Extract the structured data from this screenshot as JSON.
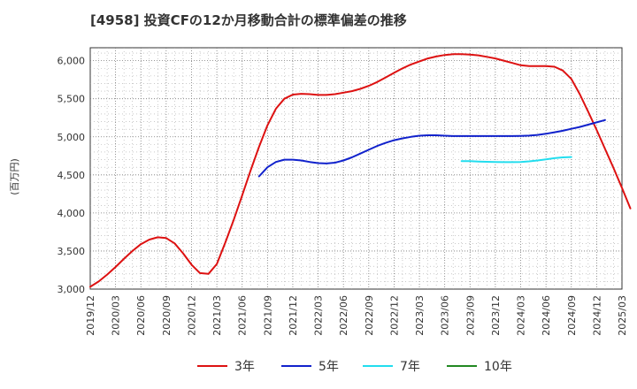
{
  "chart_data": {
    "type": "line",
    "title": "[4958]  投資CFの12か月移動合計の標準偏差の推移",
    "ylabel": "(百万円)",
    "xlabel": "",
    "ylim": [
      3000,
      6170
    ],
    "xlim": [
      "2019/12",
      "2025/03"
    ],
    "grid": true,
    "legend_position": "bottom",
    "y_ticks": [
      3000,
      3500,
      4000,
      4500,
      5000,
      5500,
      6000
    ],
    "y_tick_labels": [
      "3,000",
      "3,500",
      "4,000",
      "4,500",
      "5,000",
      "5,500",
      "6,000"
    ],
    "x_tick_labels": [
      "2019/12",
      "2020/03",
      "2020/06",
      "2020/09",
      "2020/12",
      "2021/03",
      "2021/06",
      "2021/09",
      "2021/12",
      "2022/03",
      "2022/06",
      "2022/09",
      "2022/12",
      "2023/03",
      "2023/06",
      "2023/09",
      "2023/12",
      "2024/03",
      "2024/06",
      "2024/09",
      "2024/12",
      "2025/03"
    ],
    "series": [
      {
        "name": "3年",
        "color": "#dd1111",
        "start": "2019/12",
        "values": [
          3030,
          3100,
          3190,
          3290,
          3400,
          3500,
          3590,
          3650,
          3680,
          3670,
          3600,
          3470,
          3320,
          3210,
          3200,
          3330,
          3610,
          3910,
          4230,
          4560,
          4870,
          5150,
          5370,
          5500,
          5555,
          5565,
          5560,
          5550,
          5550,
          5560,
          5580,
          5600,
          5630,
          5670,
          5720,
          5780,
          5840,
          5900,
          5950,
          5990,
          6030,
          6055,
          6075,
          6085,
          6085,
          6080,
          6070,
          6050,
          6030,
          6000,
          5970,
          5940,
          5930,
          5930,
          5930,
          5920,
          5870,
          5760,
          5560,
          5330,
          5090,
          4840,
          4590,
          4330,
          4060
        ]
      },
      {
        "name": "5年",
        "color": "#1122cc",
        "start": "2021/08",
        "values": [
          4480,
          4600,
          4670,
          4700,
          4700,
          4690,
          4670,
          4655,
          4650,
          4660,
          4690,
          4730,
          4780,
          4830,
          4880,
          4920,
          4955,
          4980,
          5000,
          5015,
          5020,
          5020,
          5015,
          5010,
          5010,
          5010,
          5010,
          5010,
          5010,
          5010,
          5010,
          5012,
          5016,
          5025,
          5040,
          5060,
          5080,
          5105,
          5130,
          5160,
          5190,
          5220
        ]
      },
      {
        "name": "7年",
        "color": "#22ddee",
        "start": "2023/08",
        "values": [
          4680,
          4680,
          4675,
          4672,
          4670,
          4668,
          4668,
          4670,
          4678,
          4690,
          4705,
          4720,
          4730,
          4735
        ]
      },
      {
        "name": "10年",
        "color": "#228822",
        "start": "2024/09",
        "values": []
      }
    ]
  }
}
